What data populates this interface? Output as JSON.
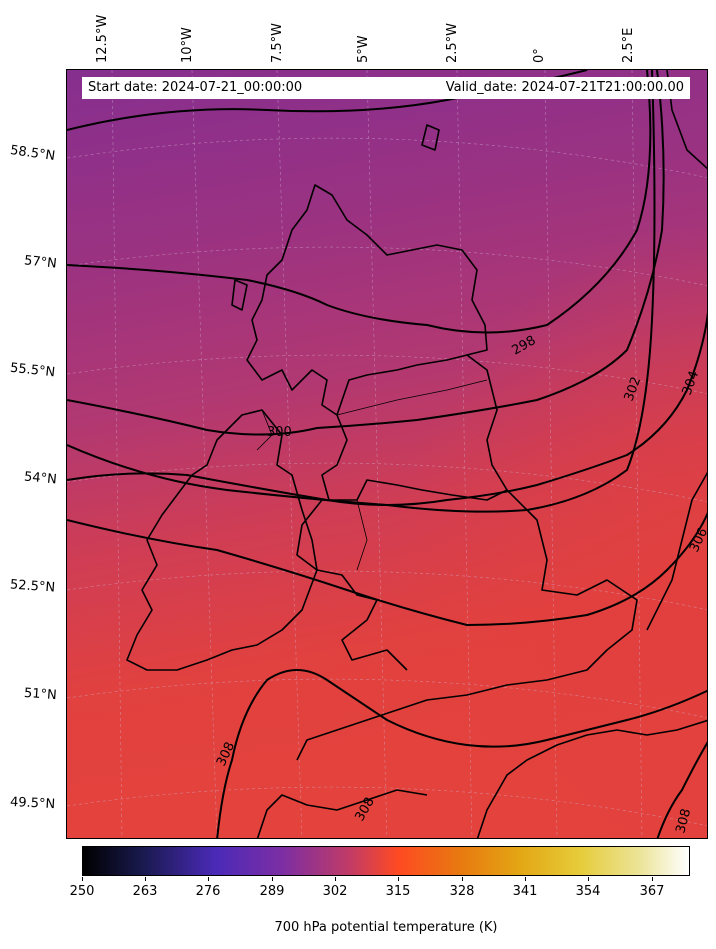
{
  "header": {
    "start_date": "Start date: 2024-07-21_00:00:00",
    "valid_date": "Valid_date: 2024-07-21T21:00:00.00"
  },
  "longitude_labels": [
    "12.5°W",
    "10°W",
    "7.5°W",
    "5°W",
    "2.5°W",
    "0°",
    "2.5°E"
  ],
  "latitude_labels": [
    "58.5°N",
    "57°N",
    "55.5°N",
    "54°N",
    "52.5°N",
    "51°N",
    "49.5°N"
  ],
  "contour_labels": [
    "298",
    "300",
    "302",
    "304",
    "306",
    "308",
    "308",
    "308"
  ],
  "colorbar": {
    "title": "700 hPa potential temperature (K)",
    "ticks": [
      "250",
      "263",
      "276",
      "289",
      "302",
      "315",
      "328",
      "341",
      "354",
      "367"
    ],
    "colormap": "CMRmap"
  },
  "colors": {
    "north": "#8a2f8c",
    "mid": "#b8386e",
    "south": "#e2403e",
    "contour": "#000000"
  }
}
